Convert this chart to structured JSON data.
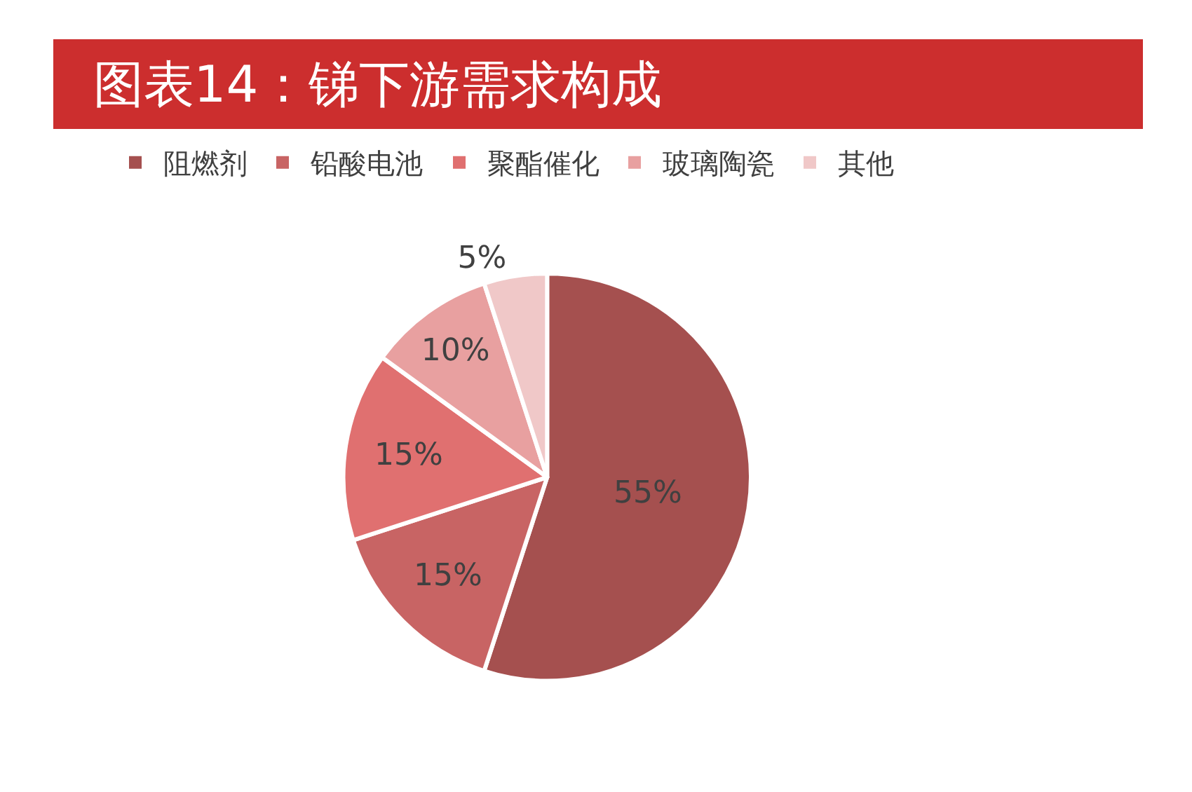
{
  "chart_data": {
    "type": "pie",
    "title": "图表14：锑下游需求构成",
    "categories": [
      "阻燃剂",
      "铅酸电池",
      "聚酯催化",
      "玻璃陶瓷",
      "其他"
    ],
    "values": [
      55,
      15,
      15,
      10,
      5
    ],
    "colors": [
      "#a5504f",
      "#c86464",
      "#e07070",
      "#e8a0a0",
      "#f0c8c8"
    ],
    "value_labels": [
      "55%",
      "15%",
      "15%",
      "10%",
      "5%"
    ],
    "legend": "top"
  }
}
